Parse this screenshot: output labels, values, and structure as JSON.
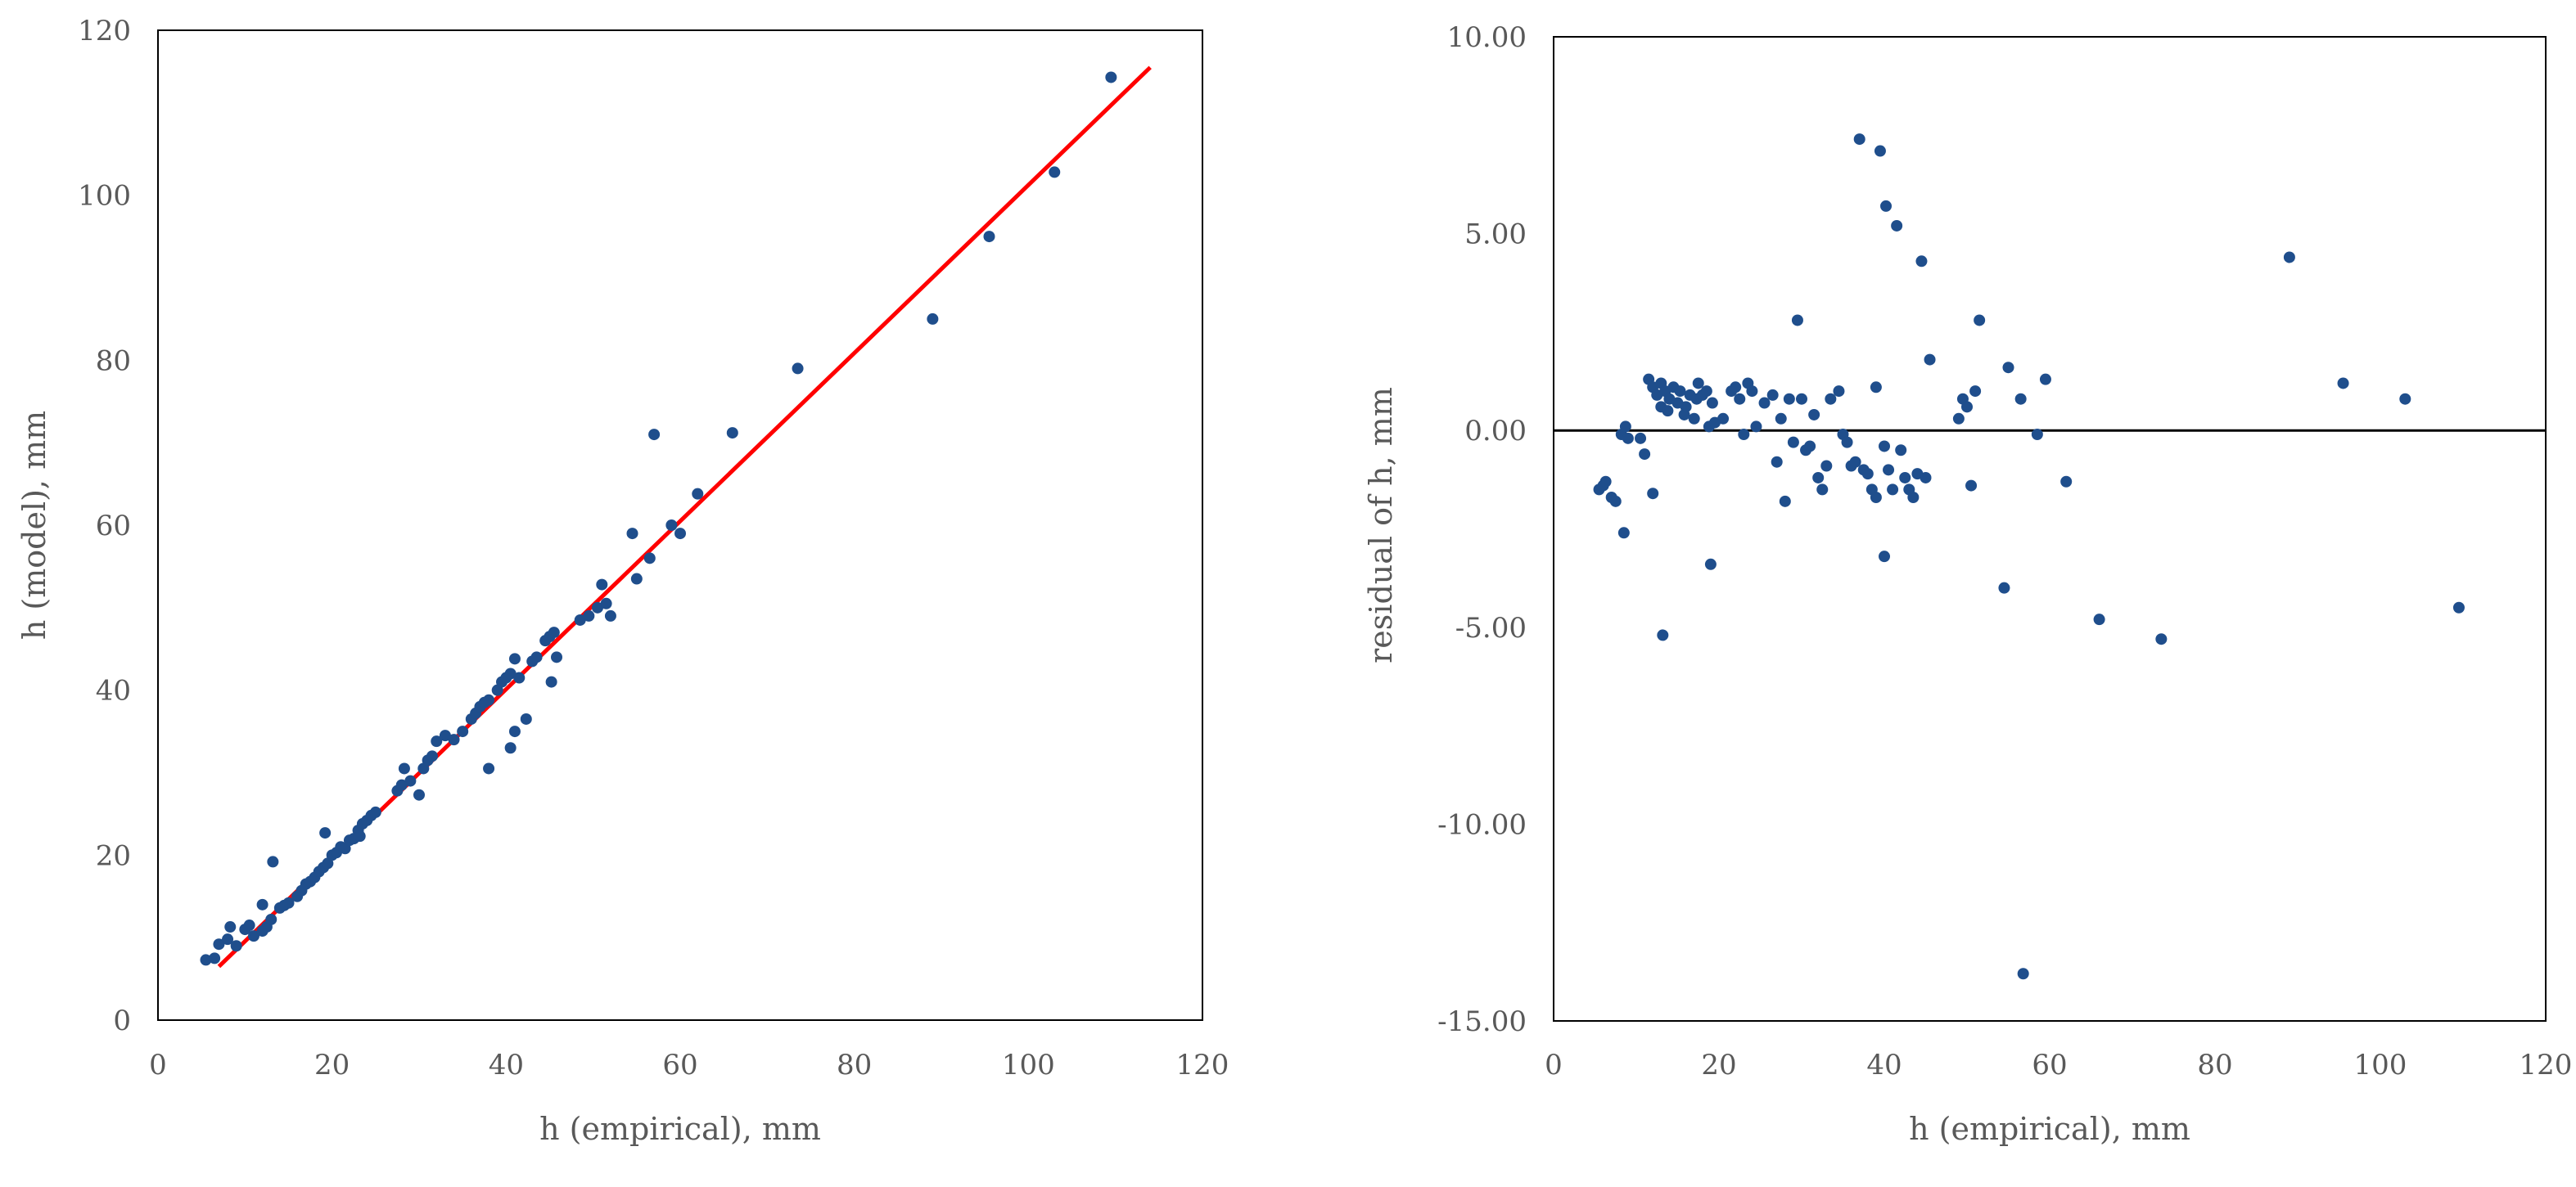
{
  "chart_data": [
    {
      "type": "scatter",
      "xlabel": "h (empirical), mm",
      "ylabel": "h (model), mm",
      "xlim": [
        0,
        120
      ],
      "ylim": [
        0,
        120
      ],
      "xticks": [
        "0",
        "20",
        "40",
        "60",
        "80",
        "100",
        "120"
      ],
      "yticks": [
        "0",
        "20",
        "40",
        "60",
        "80",
        "100",
        "120"
      ],
      "grid": false,
      "colors": {
        "points": "#1f4e8c",
        "fit_line": "#ff0000"
      },
      "fit_line": {
        "x": [
          7,
          114
        ],
        "y": [
          6.5,
          115.5
        ]
      },
      "points": [
        [
          5.5,
          7.3
        ],
        [
          6.5,
          7.5
        ],
        [
          7,
          9.2
        ],
        [
          8,
          9.8
        ],
        [
          8.3,
          11.3
        ],
        [
          9,
          9
        ],
        [
          10,
          11
        ],
        [
          10.5,
          11.5
        ],
        [
          11,
          10.2
        ],
        [
          12,
          14
        ],
        [
          12,
          10.8
        ],
        [
          12.5,
          11.3
        ],
        [
          13,
          12.2
        ],
        [
          13.2,
          19.2
        ],
        [
          14,
          13.6
        ],
        [
          14.5,
          13.9
        ],
        [
          15,
          14.2
        ],
        [
          16,
          15
        ],
        [
          16.5,
          15.7
        ],
        [
          17,
          16.5
        ],
        [
          17.5,
          16.8
        ],
        [
          18,
          17.3
        ],
        [
          18.5,
          18
        ],
        [
          19,
          18.5
        ],
        [
          19.2,
          22.7
        ],
        [
          19.5,
          19
        ],
        [
          20,
          20
        ],
        [
          20.5,
          20.3
        ],
        [
          21,
          21
        ],
        [
          21.5,
          20.8
        ],
        [
          22,
          21.8
        ],
        [
          22.5,
          22
        ],
        [
          23,
          23
        ],
        [
          23.2,
          22.3
        ],
        [
          23.5,
          23.8
        ],
        [
          24,
          24.2
        ],
        [
          24.5,
          24.8
        ],
        [
          25,
          25.2
        ],
        [
          27.5,
          27.8
        ],
        [
          28,
          28.5
        ],
        [
          28.3,
          30.5
        ],
        [
          29,
          29
        ],
        [
          30,
          27.3
        ],
        [
          30.5,
          30.5
        ],
        [
          31,
          31.5
        ],
        [
          31.5,
          32
        ],
        [
          32,
          33.8
        ],
        [
          33,
          34.5
        ],
        [
          34,
          34
        ],
        [
          35,
          35
        ],
        [
          36,
          36.5
        ],
        [
          36.5,
          37.2
        ],
        [
          37,
          38
        ],
        [
          37.5,
          38.5
        ],
        [
          38,
          38.8
        ],
        [
          38,
          30.5
        ],
        [
          39,
          40
        ],
        [
          39.5,
          41
        ],
        [
          40,
          41.5
        ],
        [
          40.5,
          42
        ],
        [
          40.5,
          33
        ],
        [
          41,
          43.8
        ],
        [
          41,
          35
        ],
        [
          41.5,
          41.5
        ],
        [
          42.3,
          36.5
        ],
        [
          43,
          43.5
        ],
        [
          43.5,
          44
        ],
        [
          44.5,
          46
        ],
        [
          45,
          46.5
        ],
        [
          45.5,
          47
        ],
        [
          45.2,
          41
        ],
        [
          45.8,
          44
        ],
        [
          48.5,
          48.5
        ],
        [
          49.5,
          49
        ],
        [
          50.5,
          50
        ],
        [
          51,
          52.8
        ],
        [
          51.5,
          50.5
        ],
        [
          52,
          49
        ],
        [
          54.5,
          59
        ],
        [
          55,
          53.5
        ],
        [
          56.5,
          56
        ],
        [
          57,
          71
        ],
        [
          59,
          60
        ],
        [
          60,
          59
        ],
        [
          62,
          63.8
        ],
        [
          66,
          71.2
        ],
        [
          73.5,
          79
        ],
        [
          89,
          85
        ],
        [
          95.5,
          95
        ],
        [
          103,
          102.8
        ],
        [
          109.5,
          114.3
        ]
      ]
    },
    {
      "type": "scatter",
      "xlabel": "h (empirical), mm",
      "ylabel": "residual of h, mm",
      "xlim": [
        0,
        120
      ],
      "ylim": [
        -15,
        10
      ],
      "xticks": [
        "0",
        "20",
        "40",
        "60",
        "80",
        "100",
        "120"
      ],
      "yticks": [
        "10.00",
        "5.00",
        "0.00",
        "-5.00",
        "-10.00",
        "-15.00"
      ],
      "grid": false,
      "reference_line_y": 0,
      "colors": {
        "points": "#1f4e8c",
        "zero_line": "#000000"
      },
      "points": [
        [
          5.5,
          -1.5
        ],
        [
          6,
          -1.4
        ],
        [
          6.3,
          -1.3
        ],
        [
          7,
          -1.7
        ],
        [
          7.5,
          -1.8
        ],
        [
          8.2,
          -0.1
        ],
        [
          8.5,
          -2.6
        ],
        [
          8.7,
          0.1
        ],
        [
          9,
          -0.2
        ],
        [
          10.5,
          -0.2
        ],
        [
          11,
          -0.6
        ],
        [
          11.5,
          1.3
        ],
        [
          12,
          1.1
        ],
        [
          12,
          -1.6
        ],
        [
          12.5,
          0.9
        ],
        [
          13,
          1.2
        ],
        [
          13,
          0.6
        ],
        [
          13.2,
          -5.2
        ],
        [
          13.5,
          1.0
        ],
        [
          13.8,
          0.5
        ],
        [
          14,
          0.8
        ],
        [
          14.5,
          1.1
        ],
        [
          15,
          0.7
        ],
        [
          15.3,
          1.0
        ],
        [
          15.8,
          0.4
        ],
        [
          16,
          0.6
        ],
        [
          16.5,
          0.9
        ],
        [
          17,
          0.3
        ],
        [
          17.3,
          0.8
        ],
        [
          17.5,
          1.2
        ],
        [
          18,
          0.9
        ],
        [
          18.5,
          1.0
        ],
        [
          18.8,
          0.1
        ],
        [
          19,
          -3.4
        ],
        [
          19.2,
          0.7
        ],
        [
          19.5,
          0.2
        ],
        [
          20.5,
          0.3
        ],
        [
          21.5,
          1.0
        ],
        [
          22,
          1.1
        ],
        [
          22.5,
          0.8
        ],
        [
          23,
          -0.1
        ],
        [
          23.5,
          1.2
        ],
        [
          24,
          1.0
        ],
        [
          24.5,
          0.1
        ],
        [
          25.5,
          0.7
        ],
        [
          26.5,
          0.9
        ],
        [
          27,
          -0.8
        ],
        [
          27.5,
          0.3
        ],
        [
          28,
          -1.8
        ],
        [
          28.5,
          0.8
        ],
        [
          29,
          -0.3
        ],
        [
          29.5,
          2.8
        ],
        [
          30,
          0.8
        ],
        [
          30.5,
          -0.5
        ],
        [
          31,
          -0.4
        ],
        [
          31.5,
          0.4
        ],
        [
          32,
          -1.2
        ],
        [
          32.5,
          -1.5
        ],
        [
          33,
          -0.9
        ],
        [
          33.5,
          0.8
        ],
        [
          34.5,
          1.0
        ],
        [
          35,
          -0.1
        ],
        [
          35.5,
          -0.3
        ],
        [
          36,
          -0.9
        ],
        [
          36.5,
          -0.8
        ],
        [
          37,
          7.4
        ],
        [
          37.5,
          -1.0
        ],
        [
          38,
          -1.1
        ],
        [
          38.5,
          -1.5
        ],
        [
          39,
          1.1
        ],
        [
          39,
          -1.7
        ],
        [
          39.5,
          7.1
        ],
        [
          40,
          -3.2
        ],
        [
          40,
          -0.4
        ],
        [
          40.2,
          5.7
        ],
        [
          40.5,
          -1.0
        ],
        [
          41,
          -1.5
        ],
        [
          41.5,
          5.2
        ],
        [
          42,
          -0.5
        ],
        [
          42.5,
          -1.2
        ],
        [
          43,
          -1.5
        ],
        [
          43.5,
          -1.7
        ],
        [
          44,
          -1.1
        ],
        [
          44.5,
          4.3
        ],
        [
          45,
          -1.2
        ],
        [
          45.5,
          1.8
        ],
        [
          49,
          0.3
        ],
        [
          49.5,
          0.8
        ],
        [
          50,
          0.6
        ],
        [
          50.5,
          -1.4
        ],
        [
          51,
          1.0
        ],
        [
          51.5,
          2.8
        ],
        [
          54.5,
          -4.0
        ],
        [
          55,
          1.6
        ],
        [
          56.5,
          0.8
        ],
        [
          56.8,
          -13.8
        ],
        [
          58.5,
          -0.1
        ],
        [
          59.5,
          1.3
        ],
        [
          62,
          -1.3
        ],
        [
          66,
          -4.8
        ],
        [
          73.5,
          -5.3
        ],
        [
          89,
          4.4
        ],
        [
          95.5,
          1.2
        ],
        [
          103,
          0.8
        ],
        [
          109.5,
          -4.5
        ]
      ]
    }
  ]
}
